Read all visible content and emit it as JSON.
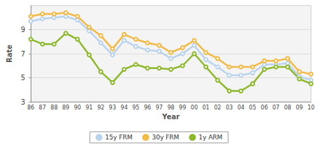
{
  "chart_data": {
    "type": "line",
    "xlabel": "Year",
    "ylabel": "Rate",
    "categories": [
      "86",
      "87",
      "88",
      "89",
      "90",
      "91",
      "92",
      "93",
      "94",
      "95",
      "96",
      "97",
      "98",
      "99",
      "00",
      "01",
      "02",
      "03",
      "04",
      "05",
      "06",
      "07",
      "08",
      "09",
      "10"
    ],
    "series": [
      {
        "name": "15y FRM",
        "color": "#b9d3ec",
        "values": [
          9.7,
          9.9,
          10.0,
          10.1,
          9.8,
          8.9,
          7.9,
          6.9,
          8.1,
          7.6,
          7.3,
          7.2,
          6.6,
          7.0,
          7.7,
          6.5,
          5.9,
          5.2,
          5.2,
          5.4,
          6.1,
          6.1,
          6.2,
          5.1,
          4.8
        ]
      },
      {
        "name": "30y FRM",
        "color": "#f2b944",
        "values": [
          10.1,
          10.3,
          10.3,
          10.4,
          10.1,
          9.2,
          8.5,
          7.4,
          8.6,
          8.2,
          7.9,
          7.7,
          7.1,
          7.5,
          8.1,
          7.1,
          6.6,
          5.9,
          5.9,
          5.9,
          6.4,
          6.4,
          6.6,
          5.5,
          5.3
        ]
      },
      {
        "name": "1y ARM",
        "color": "#8db82c",
        "values": [
          8.2,
          7.8,
          7.8,
          8.7,
          8.2,
          6.9,
          5.5,
          4.6,
          5.7,
          6.1,
          5.8,
          5.8,
          5.7,
          6.0,
          7.0,
          5.9,
          4.8,
          3.9,
          3.9,
          4.5,
          5.7,
          5.9,
          5.9,
          4.9,
          4.5
        ]
      }
    ],
    "ylim": [
      3,
      11
    ],
    "yticks": [
      3,
      5,
      7,
      9
    ],
    "grid": true,
    "legend": "bottom",
    "marker": "circle"
  }
}
